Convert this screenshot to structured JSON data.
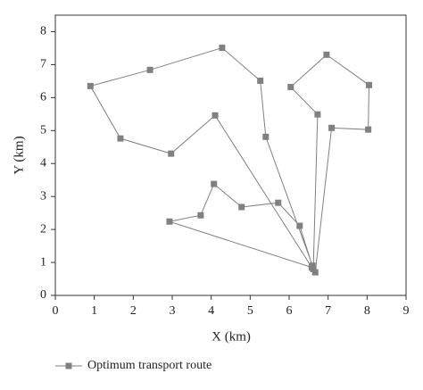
{
  "chart_data": {
    "type": "line",
    "x_label": "X (km)",
    "y_label": "Y (km)",
    "x": [
      6.6,
      5.4,
      5.26,
      4.28,
      2.43,
      0.9,
      1.67,
      2.97,
      4.1,
      6.58,
      2.93,
      3.73,
      4.07,
      4.78,
      5.72,
      6.27,
      6.62,
      6.73,
      6.04,
      6.96,
      8.05,
      8.03,
      7.09,
      6.67
    ],
    "series": [
      {
        "name": "Optimum transport route",
        "color": "#808080",
        "values": [
          0.9,
          4.81,
          6.51,
          7.51,
          6.84,
          6.35,
          4.76,
          4.3,
          5.46,
          0.85,
          2.24,
          2.43,
          3.38,
          2.68,
          2.81,
          2.11,
          0.8,
          5.49,
          6.32,
          7.3,
          6.38,
          5.03,
          5.08,
          0.7
        ]
      }
    ],
    "xlim": [
      0,
      9
    ],
    "xticks": [
      0,
      1,
      2,
      3,
      4,
      5,
      6,
      7,
      8,
      9
    ],
    "ylim": [
      0,
      8.5
    ],
    "yticks": [
      0,
      1,
      2,
      3,
      4,
      5,
      6,
      7,
      8
    ],
    "grid": false,
    "legend": "bottom"
  }
}
